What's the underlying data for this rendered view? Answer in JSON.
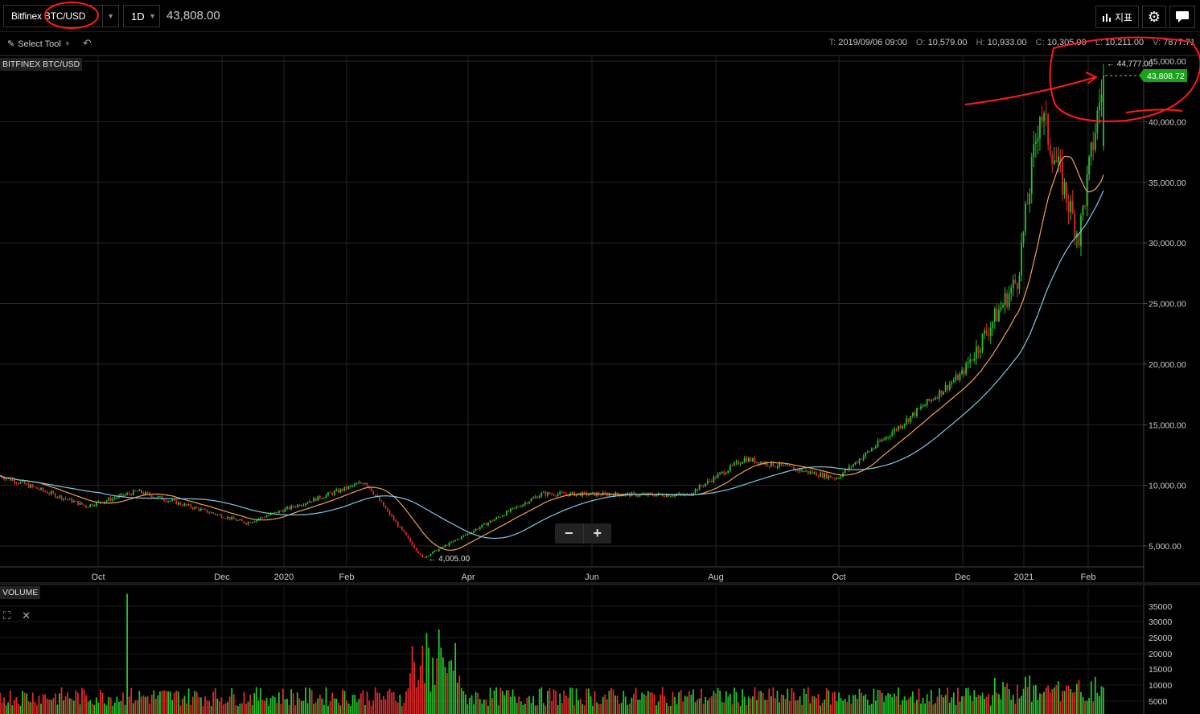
{
  "toolbar": {
    "symbol": "Bitfinex BTC/USD",
    "interval": "1D",
    "last_price": "43,808.00",
    "indicators_label": "지표",
    "select_tool_label": "Select Tool"
  },
  "ohlc": {
    "t_label": "T:",
    "t_value": "2019/09/06 09:00",
    "o_label": "O:",
    "o_value": "10,579.00",
    "h_label": "H:",
    "h_value": "10,933.00",
    "c_label": "C:",
    "c_value": "10,305.00",
    "l_label": "L:",
    "l_value": "10,211.00",
    "v_label": "V:",
    "v_value": "7877.71"
  },
  "price_pane": {
    "label": "BITFINEX BTC/USD",
    "high_marker": "44,777.00",
    "low_marker": "4,005.00",
    "current_badge": "43,808.72",
    "y_ticks": [
      "45,000.00",
      "40,000.00",
      "35,000.00",
      "30,000.00",
      "25,000.00",
      "20,000.00",
      "15,000.00",
      "10,000.00",
      "5,000.00"
    ],
    "x_ticks": [
      "Oct",
      "Dec",
      "2020",
      "Feb",
      "Apr",
      "Jun",
      "Aug",
      "Oct",
      "Dec",
      "2021",
      "Feb"
    ]
  },
  "volume_pane": {
    "label": "VOLUME",
    "y_ticks": [
      "35000",
      "30000",
      "25000",
      "20000",
      "15000",
      "10000",
      "5000"
    ]
  },
  "zoom": {
    "minus": "−",
    "plus": "+"
  },
  "colors": {
    "up": "#22c32e",
    "down": "#e0292b",
    "ma_fast": "#f0a050",
    "ma_slow": "#7ec8e3",
    "badge": "#1aa31a",
    "annotation": "#ff1a1a",
    "grid": "#262626"
  },
  "icons": {
    "indicators": "bar-chart-icon",
    "settings": "gear-icon",
    "chat": "chat-bubble-icon",
    "pencil": "pencil-icon",
    "undo": "undo-icon",
    "fullscreen": "fullscreen-icon",
    "close": "close-icon"
  },
  "chart_data": {
    "type": "candlestick",
    "x_range": [
      "2019-08-20",
      "2021-02-08"
    ],
    "ylim": [
      3000,
      46000
    ],
    "grid": true,
    "key_points": [
      {
        "date": "2019-08-20",
        "price": 10800
      },
      {
        "date": "2019-10-01",
        "price": 8300
      },
      {
        "date": "2019-10-26",
        "price": 9500
      },
      {
        "date": "2019-12-18",
        "price": 6900
      },
      {
        "date": "2020-02-14",
        "price": 10300
      },
      {
        "date": "2020-03-13",
        "price": 4005
      },
      {
        "date": "2020-05-10",
        "price": 9300
      },
      {
        "date": "2020-07-20",
        "price": 9200
      },
      {
        "date": "2020-08-17",
        "price": 12200
      },
      {
        "date": "2020-10-01",
        "price": 10600
      },
      {
        "date": "2020-12-01",
        "price": 19200
      },
      {
        "date": "2020-12-28",
        "price": 27000
      },
      {
        "date": "2021-01-08",
        "price": 41000
      },
      {
        "date": "2021-01-27",
        "price": 30500
      },
      {
        "date": "2021-02-08",
        "price": 43808
      }
    ],
    "high": 44777,
    "low": 4005,
    "last": 43808.72
  }
}
